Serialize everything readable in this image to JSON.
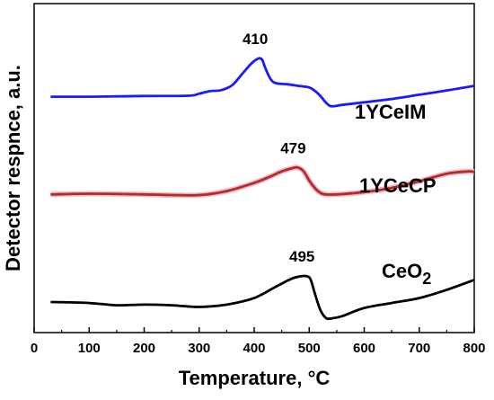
{
  "chart_data": {
    "type": "line",
    "xlabel": "Temperature, °C",
    "ylabel": "Detector respnce, a.u.",
    "xlim": [
      0,
      800
    ],
    "ylim": [
      0,
      1
    ],
    "x_ticks": [
      0,
      100,
      200,
      300,
      400,
      500,
      600,
      700,
      800
    ],
    "grid": false,
    "legend": "none",
    "series": [
      {
        "name": "1YCeIM",
        "name_sub": "",
        "color": "#1a1aff",
        "peak_label": "410",
        "peak_x": 410,
        "x": [
          30,
          100,
          200,
          280,
          300,
          320,
          340,
          360,
          380,
          395,
          405,
          410,
          415,
          420,
          430,
          440,
          460,
          480,
          500,
          510,
          520,
          530,
          540,
          560,
          600,
          650,
          700,
          750,
          800
        ],
        "values": [
          0.717,
          0.717,
          0.719,
          0.72,
          0.726,
          0.734,
          0.737,
          0.752,
          0.79,
          0.818,
          0.831,
          0.834,
          0.828,
          0.805,
          0.77,
          0.758,
          0.755,
          0.75,
          0.745,
          0.735,
          0.72,
          0.7,
          0.688,
          0.692,
          0.7,
          0.71,
          0.723,
          0.736,
          0.75
        ]
      },
      {
        "name": "1YCeCP",
        "name_sub": "",
        "color": "#b03020",
        "peak_label": "479",
        "peak_x": 479,
        "x": [
          30,
          100,
          200,
          250,
          300,
          350,
          400,
          430,
          450,
          470,
          479,
          490,
          500,
          510,
          520,
          530,
          550,
          600,
          650,
          700,
          750,
          790,
          800
        ],
        "values": [
          0.42,
          0.422,
          0.42,
          0.418,
          0.418,
          0.43,
          0.455,
          0.475,
          0.49,
          0.5,
          0.502,
          0.49,
          0.462,
          0.44,
          0.425,
          0.42,
          0.42,
          0.427,
          0.44,
          0.46,
          0.483,
          0.49,
          0.488
        ]
      },
      {
        "name": "CeO",
        "name_sub": "2",
        "color": "#000000",
        "peak_label": "495",
        "peak_x": 495,
        "x": [
          30,
          100,
          150,
          200,
          250,
          300,
          350,
          400,
          440,
          470,
          490,
          500,
          505,
          510,
          520,
          530,
          540,
          560,
          600,
          650,
          700,
          750,
          800
        ],
        "values": [
          0.093,
          0.09,
          0.083,
          0.085,
          0.083,
          0.078,
          0.085,
          0.105,
          0.14,
          0.165,
          0.172,
          0.168,
          0.15,
          0.12,
          0.07,
          0.045,
          0.043,
          0.05,
          0.075,
          0.09,
          0.105,
          0.13,
          0.16
        ]
      }
    ]
  }
}
